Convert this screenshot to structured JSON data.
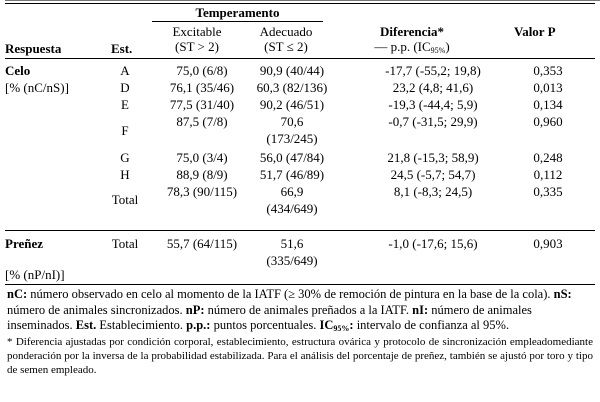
{
  "table": {
    "header": {
      "temperamento": "Temperamento",
      "respuesta": "Respuesta",
      "est": "Est.",
      "excitable_line1": "Excitable",
      "excitable_line2": "(ST > 2)",
      "adecuado_line1": "Adecuado",
      "adecuado_line2": "(ST ≤ 2)",
      "diferencia_line1": "Diferencia*",
      "diferencia_line2a": "— p.p. (IC",
      "diferencia_sub": "95%",
      "diferencia_line2b": ")",
      "valor_p": "Valor P"
    },
    "celo": {
      "label": "Celo",
      "unit": "[% (nC/nS)]",
      "rows": [
        {
          "est": "A",
          "excitable": "75,0 (6/8)",
          "adecuado": "90,9 (40/44)",
          "diferencia": "-17,7 (-55,2; 19,8)",
          "p": "0,353"
        },
        {
          "est": "D",
          "excitable": "76,1 (35/46)",
          "adecuado": "60,3 (82/136)",
          "diferencia": "23,2 (4,8; 41,6)",
          "p": "0,013"
        },
        {
          "est": "E",
          "excitable": "77,5 (31/40)",
          "adecuado": "90,2 (46/51)",
          "diferencia": "-19,3 (-44,4; 5,9)",
          "p": "0,134"
        },
        {
          "est": "F",
          "excitable": "87,5 (7/8)",
          "adecuado_l1": "70,6",
          "adecuado_l2": "(173/245)",
          "diferencia": "-0,7 (-31,5; 29,9)",
          "p": "0,960"
        },
        {
          "est": "G",
          "excitable": "75,0 (3/4)",
          "adecuado": "56,0 (47/84)",
          "diferencia": "21,8 (-15,3; 58,9)",
          "p": "0,248"
        },
        {
          "est": "H",
          "excitable": "88,9 (8/9)",
          "adecuado": "51,7 (46/89)",
          "diferencia": "24,5 (-5,7; 54,7)",
          "p": "0,112"
        },
        {
          "est": "Total",
          "excitable": "78,3 (90/115)",
          "adecuado_l1": "66,9",
          "adecuado_l2": "(434/649)",
          "diferencia": "8,1 (-8,3; 24,5)",
          "p": "0,335"
        }
      ]
    },
    "prenez": {
      "label": "Preñez",
      "unit": "[% (nP/nI)]",
      "est": "Total",
      "excitable": "55,7 (64/115)",
      "adecuado_l1": "51,6",
      "adecuado_l2": "(335/649)",
      "diferencia": "-1,0 (-17,6; 15,6)",
      "p": "0,903"
    }
  },
  "notes": {
    "nC_term": "nC:",
    "nC_text": " número observado en celo al momento de la IATF (≥ 30% de remoción de pintura en la base de la cola). ",
    "nS_term": "nS:",
    "nS_text": " número de animales sincronizados. ",
    "nP_term": "nP:",
    "nP_text": " número de animales preñados a la IATF. ",
    "nI_term": "nI:",
    "nI_text": " número de animales inseminados. ",
    "est_term": "Est.",
    "est_text": " Establecimiento. ",
    "pp_term": "p.p.:",
    "pp_text": " puntos porcentuales. ",
    "ic_term": "IC",
    "ic_sub": "95%",
    "ic_colon": ":",
    "ic_text": " intervalo de confianza al 95%.",
    "footnote": "* Diferencia ajustadas por condición corporal, establecimiento, estructura ovárica y protocolo de sincronización empleadomediante ponderación por la inversa de la probabilidad estabilizada. Para el análisis del porcentaje de preñez, también se ajustó por toro y tipo de semen empleado."
  }
}
